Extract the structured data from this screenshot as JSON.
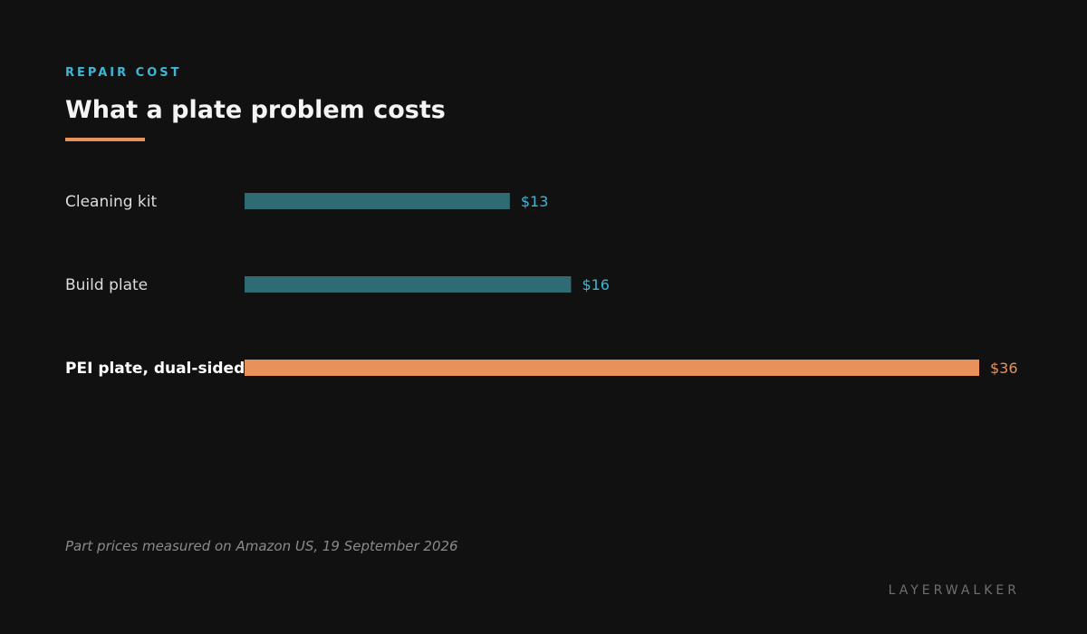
{
  "header": {
    "eyebrow": "REPAIR COST",
    "title": "What a plate problem costs"
  },
  "chart_data": {
    "type": "bar",
    "orientation": "horizontal",
    "categories": [
      "Cleaning kit",
      "Build plate",
      "PEI plate, dual-sided"
    ],
    "values": [
      13,
      16,
      36
    ],
    "value_labels": [
      "$13",
      "$16",
      "$36"
    ],
    "highlight": "PEI plate, dual-sided",
    "xlim": [
      0,
      36
    ],
    "grid": false,
    "legend": "none",
    "colors": {
      "default_bar": "#2e6b73",
      "default_label": "#3fb6d3",
      "highlight_bar": "#e8915a",
      "highlight_label": "#e8915a",
      "category_text": "#dcdcdc",
      "highlight_category_text": "#ffffff"
    }
  },
  "footer": {
    "note": "Part prices measured on Amazon US, 19 September 2026",
    "brand": "LAYERWALKER"
  },
  "theme": {
    "background": "#111111",
    "accent": "#3fb6d3",
    "highlight": "#e8915a"
  }
}
